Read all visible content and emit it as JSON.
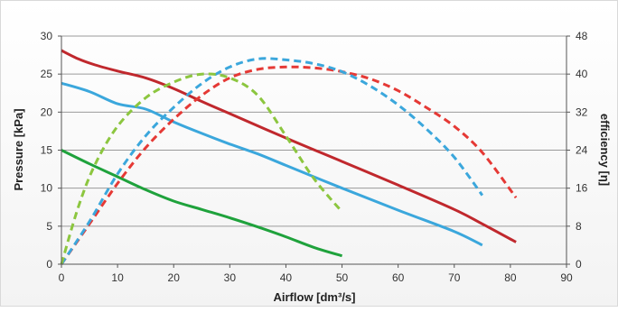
{
  "chart_data": {
    "type": "line",
    "title": "",
    "xlabel": "Airflow [dm³/s]",
    "ylabel": "Pressure [kPa]",
    "y2label": "efficiency [η]",
    "xlim": [
      0,
      90
    ],
    "ylim": [
      0,
      30
    ],
    "y2lim": [
      0,
      48
    ],
    "xticks": [
      "0",
      "10",
      "20",
      "30",
      "40",
      "50",
      "60",
      "70",
      "80",
      "90"
    ],
    "yticks": [
      "0",
      "5",
      "10",
      "15",
      "20",
      "25",
      "30"
    ],
    "y2ticks": [
      "0",
      "8",
      "16",
      "24",
      "32",
      "40",
      "48"
    ],
    "grid": "horizontal",
    "legend": "none",
    "series": [
      {
        "axis": "left",
        "style": "solid",
        "color": "#c0282d",
        "x": [
          0,
          3,
          6,
          10,
          15,
          20,
          25,
          30,
          40,
          50,
          60,
          70,
          75,
          81
        ],
        "y": [
          28.1,
          27.0,
          26.2,
          25.4,
          24.5,
          23.1,
          21.4,
          19.8,
          16.6,
          13.5,
          10.4,
          7.2,
          5.3,
          2.9
        ]
      },
      {
        "axis": "left",
        "style": "solid",
        "color": "#3ba7dc",
        "x": [
          0,
          5,
          10,
          15,
          20,
          25,
          30,
          35,
          40,
          50,
          60,
          70,
          75
        ],
        "y": [
          23.8,
          22.7,
          21.1,
          20.4,
          18.7,
          17.2,
          15.8,
          14.5,
          13.0,
          10.0,
          7.1,
          4.3,
          2.5
        ]
      },
      {
        "axis": "left",
        "style": "solid",
        "color": "#1fa23c",
        "x": [
          0,
          5,
          10,
          15,
          20,
          25,
          30,
          35,
          40,
          45,
          50
        ],
        "y": [
          15.0,
          13.2,
          11.5,
          9.8,
          8.3,
          7.2,
          6.1,
          4.9,
          3.6,
          2.2,
          1.1
        ]
      },
      {
        "axis": "right",
        "style": "dashed",
        "color": "#e53935",
        "x": [
          0,
          5,
          10,
          15,
          20,
          25,
          30,
          35,
          40,
          45,
          50,
          55,
          60,
          65,
          70,
          75,
          81
        ],
        "y": [
          0,
          8.5,
          17.0,
          24.5,
          30.5,
          35.5,
          39.2,
          41.0,
          41.5,
          41.3,
          40.5,
          39.0,
          36.5,
          33.0,
          29.0,
          23.5,
          14.0
        ]
      },
      {
        "axis": "right",
        "style": "dashed",
        "color": "#3ba7dc",
        "x": [
          0,
          5,
          10,
          15,
          20,
          25,
          30,
          35,
          40,
          45,
          50,
          55,
          60,
          65,
          70,
          75
        ],
        "y": [
          0,
          9.0,
          19.0,
          27.0,
          33.0,
          38.0,
          41.5,
          43.2,
          43.0,
          42.2,
          40.5,
          37.5,
          33.5,
          28.5,
          22.5,
          14.5
        ]
      },
      {
        "axis": "right",
        "style": "dashed",
        "color": "#8cc63f",
        "x": [
          0,
          3,
          6,
          10,
          15,
          20,
          25,
          30,
          35,
          40,
          45,
          50
        ],
        "y": [
          0,
          12.0,
          21.0,
          29.0,
          35.0,
          38.3,
          40.0,
          39.2,
          35.5,
          27.0,
          18.0,
          11.0
        ]
      }
    ]
  }
}
